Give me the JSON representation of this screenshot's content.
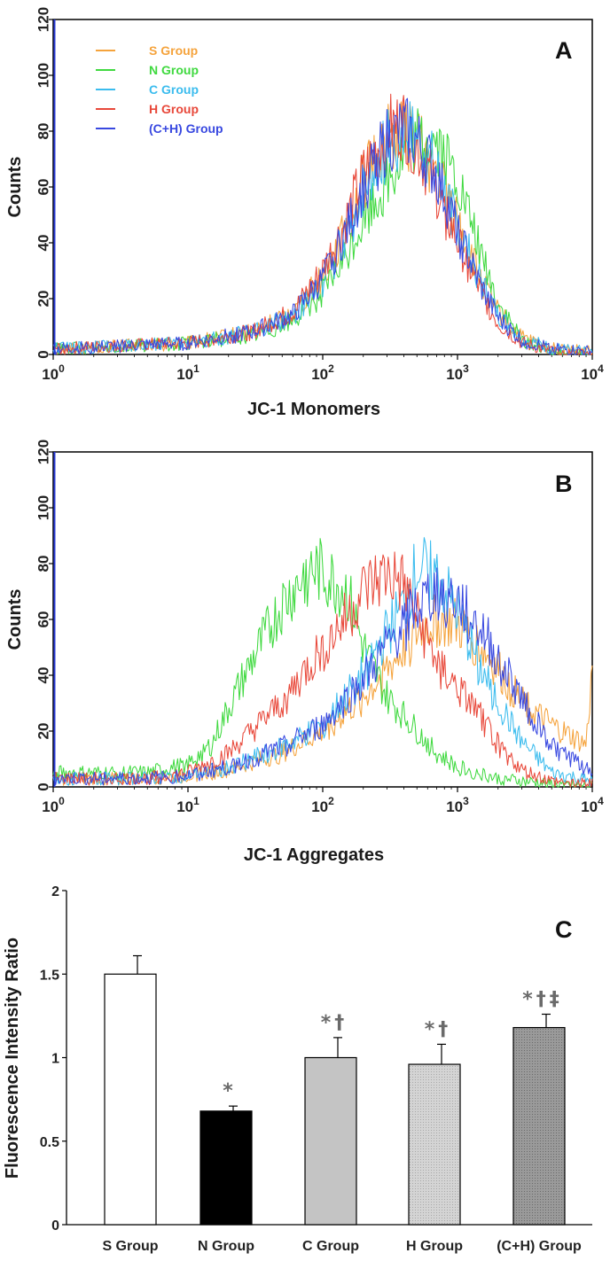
{
  "chart_data": [
    {
      "panel": "A",
      "type": "line",
      "x_scale": "log",
      "xlabel": "JC-1 Monomers",
      "ylabel": "Counts",
      "xlim": [
        1,
        10000
      ],
      "ylim": [
        0,
        120
      ],
      "x_ticks": [
        {
          "base": "10",
          "exp": "0"
        },
        {
          "base": "10",
          "exp": "1"
        },
        {
          "base": "10",
          "exp": "2"
        },
        {
          "base": "10",
          "exp": "3"
        },
        {
          "base": "10",
          "exp": "4"
        }
      ],
      "y_ticks": [
        "0",
        "20",
        "40",
        "60",
        "80",
        "100",
        "120"
      ],
      "legend": "top-left",
      "series": [
        {
          "name": "S Group",
          "color": "#f5a33c",
          "x": [
            1,
            3,
            10,
            30,
            60,
            100,
            150,
            200,
            300,
            400,
            500,
            700,
            1000,
            1500,
            2000,
            3000,
            5000,
            10000
          ],
          "y": [
            2,
            3,
            4,
            8,
            15,
            28,
            45,
            62,
            78,
            80,
            76,
            66,
            48,
            26,
            15,
            6,
            2,
            1
          ]
        },
        {
          "name": "N Group",
          "color": "#3fd93f",
          "x": [
            1,
            3,
            10,
            30,
            60,
            100,
            150,
            200,
            300,
            400,
            500,
            700,
            1000,
            1500,
            2000,
            3000,
            5000,
            10000
          ],
          "y": [
            2,
            3,
            4,
            7,
            12,
            22,
            35,
            48,
            62,
            72,
            76,
            76,
            62,
            36,
            18,
            5,
            1,
            0
          ]
        },
        {
          "name": "C Group",
          "color": "#3bbcee",
          "x": [
            1,
            3,
            10,
            30,
            60,
            100,
            150,
            200,
            300,
            400,
            500,
            700,
            1000,
            1500,
            2000,
            3000,
            5000,
            10000
          ],
          "y": [
            2,
            3,
            4,
            8,
            14,
            26,
            42,
            58,
            75,
            80,
            77,
            66,
            46,
            26,
            14,
            6,
            2,
            1
          ]
        },
        {
          "name": "H Group",
          "color": "#e8483a",
          "x": [
            1,
            3,
            10,
            30,
            60,
            100,
            150,
            200,
            300,
            400,
            500,
            700,
            1000,
            1500,
            2000,
            3000,
            5000,
            10000
          ],
          "y": [
            2,
            3,
            4,
            8,
            15,
            30,
            48,
            64,
            80,
            82,
            74,
            58,
            40,
            22,
            11,
            4,
            1,
            0
          ]
        },
        {
          "name": "(C+H) Group",
          "color": "#3848e0",
          "x": [
            1,
            3,
            10,
            30,
            60,
            100,
            150,
            200,
            300,
            400,
            500,
            700,
            1000,
            1500,
            2000,
            3000,
            5000,
            10000
          ],
          "y": [
            2,
            3,
            4,
            8,
            14,
            27,
            44,
            60,
            76,
            80,
            76,
            64,
            44,
            24,
            13,
            5,
            2,
            1
          ]
        }
      ]
    },
    {
      "panel": "B",
      "type": "line",
      "x_scale": "log",
      "xlabel": "JC-1 Aggregates",
      "ylabel": "Counts",
      "xlim": [
        1,
        10000
      ],
      "ylim": [
        0,
        120
      ],
      "x_ticks": [
        {
          "base": "10",
          "exp": "0"
        },
        {
          "base": "10",
          "exp": "1"
        },
        {
          "base": "10",
          "exp": "2"
        },
        {
          "base": "10",
          "exp": "3"
        },
        {
          "base": "10",
          "exp": "4"
        }
      ],
      "y_ticks": [
        "0",
        "20",
        "40",
        "60",
        "80",
        "100",
        "120"
      ],
      "series": [
        {
          "name": "S Group",
          "color": "#f5a33c",
          "x": [
            1,
            5,
            10,
            20,
            50,
            100,
            200,
            300,
            500,
            700,
            1000,
            1500,
            2000,
            3000,
            5000,
            9000,
            10000
          ],
          "y": [
            3,
            3,
            4,
            6,
            12,
            20,
            32,
            42,
            55,
            60,
            58,
            50,
            42,
            30,
            22,
            15,
            42
          ]
        },
        {
          "name": "N Group",
          "color": "#3fd93f",
          "x": [
            1,
            5,
            10,
            15,
            20,
            30,
            50,
            80,
            100,
            150,
            200,
            300,
            500,
            700,
            1000,
            2000,
            5000,
            10000
          ],
          "y": [
            5,
            5,
            8,
            15,
            28,
            45,
            65,
            78,
            76,
            70,
            50,
            32,
            20,
            12,
            7,
            3,
            1,
            0
          ]
        },
        {
          "name": "C Group",
          "color": "#3bbcee",
          "x": [
            1,
            5,
            10,
            20,
            50,
            100,
            200,
            300,
            400,
            500,
            700,
            1000,
            1500,
            2000,
            3000,
            5000,
            10000
          ],
          "y": [
            3,
            3,
            4,
            7,
            14,
            22,
            40,
            55,
            65,
            78,
            75,
            62,
            42,
            30,
            16,
            5,
            2
          ]
        },
        {
          "name": "H Group",
          "color": "#e8483a",
          "x": [
            1,
            5,
            10,
            20,
            50,
            100,
            150,
            200,
            300,
            400,
            500,
            700,
            1000,
            1500,
            2000,
            3000,
            5000,
            10000
          ],
          "y": [
            3,
            3,
            5,
            12,
            30,
            50,
            60,
            70,
            76,
            72,
            60,
            45,
            35,
            25,
            15,
            6,
            2,
            1
          ]
        },
        {
          "name": "(C+H) Group",
          "color": "#3848e0",
          "x": [
            1,
            5,
            10,
            20,
            50,
            100,
            200,
            300,
            500,
            700,
            1000,
            1500,
            2000,
            3000,
            5000,
            10000
          ],
          "y": [
            3,
            3,
            4,
            7,
            14,
            22,
            38,
            50,
            64,
            70,
            66,
            56,
            46,
            32,
            15,
            5
          ]
        }
      ]
    },
    {
      "panel": "C",
      "type": "bar",
      "ylabel": "Fluorescence Intensity Ratio",
      "ylim": [
        0,
        2
      ],
      "y_ticks": [
        "0",
        "0.5",
        "1",
        "1.5",
        "2"
      ],
      "categories": [
        "S Group",
        "N Group",
        "C Group",
        "H Group",
        "(C+H) Group"
      ],
      "values": [
        1.5,
        0.68,
        1.0,
        0.96,
        1.18
      ],
      "errors": [
        0.11,
        0.03,
        0.12,
        0.12,
        0.08
      ],
      "annotations": [
        "",
        "*",
        "*†",
        "*†",
        "*†‡"
      ],
      "fills": [
        "white",
        "black",
        "gray",
        "light-hatched",
        "dark-hatched"
      ]
    }
  ]
}
